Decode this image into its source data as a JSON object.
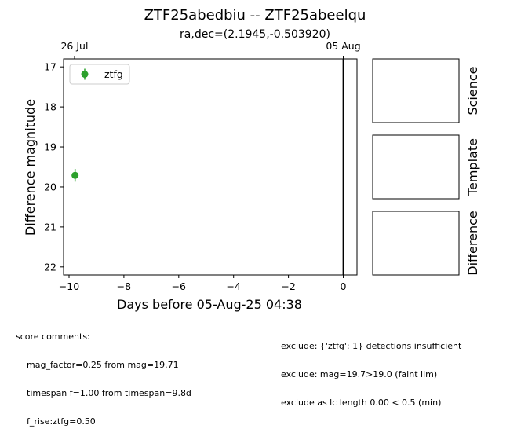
{
  "chart_data": {
    "type": "scatter",
    "title": "ZTF25abedbiu -- ZTF25abeelqu",
    "subtitle": "ra,dec=(2.1945,-0.503920)",
    "xlabel": "Days before 05-Aug-25 04:38",
    "ylabel": "Difference magnitude",
    "xlim": [
      -10.2,
      0.5
    ],
    "ylim": [
      22.2,
      16.8
    ],
    "y_inverted": true,
    "x_ticks": [
      -10,
      -8,
      -6,
      -4,
      -2,
      0
    ],
    "x_tick_labels": [
      "−10",
      "−8",
      "−6",
      "−4",
      "−2",
      "0"
    ],
    "y_ticks": [
      17,
      18,
      19,
      20,
      21,
      22
    ],
    "y_tick_labels": [
      "17",
      "18",
      "19",
      "20",
      "21",
      "22"
    ],
    "top_axis": {
      "ticks": [
        -9.8,
        0
      ],
      "labels": [
        "26 Jul",
        "05 Aug"
      ]
    },
    "vertical_line_x": 0,
    "grid": false,
    "legend_position": "upper-left",
    "series": [
      {
        "name": "ztfg",
        "color": "#2ca02c",
        "points": [
          {
            "x": -9.78,
            "y": 19.71,
            "yerr": 0.16
          }
        ]
      }
    ]
  },
  "panels": [
    {
      "label": "Science"
    },
    {
      "label": "Template"
    },
    {
      "label": "Difference"
    }
  ],
  "score_comments": {
    "heading": "score comments:",
    "lines": [
      "mag_factor=0.25 from mag=19.71",
      "timespan f=1.00 from timespan=9.8d",
      "f_rise:ztfg=0.50"
    ]
  },
  "exclusions": {
    "lines": [
      "exclude: {'ztfg': 1} detections insufficient",
      "exclude: mag=19.7>19.0 (faint lim)",
      "exclude as lc length 0.00 < 0.5 (min)"
    ]
  }
}
